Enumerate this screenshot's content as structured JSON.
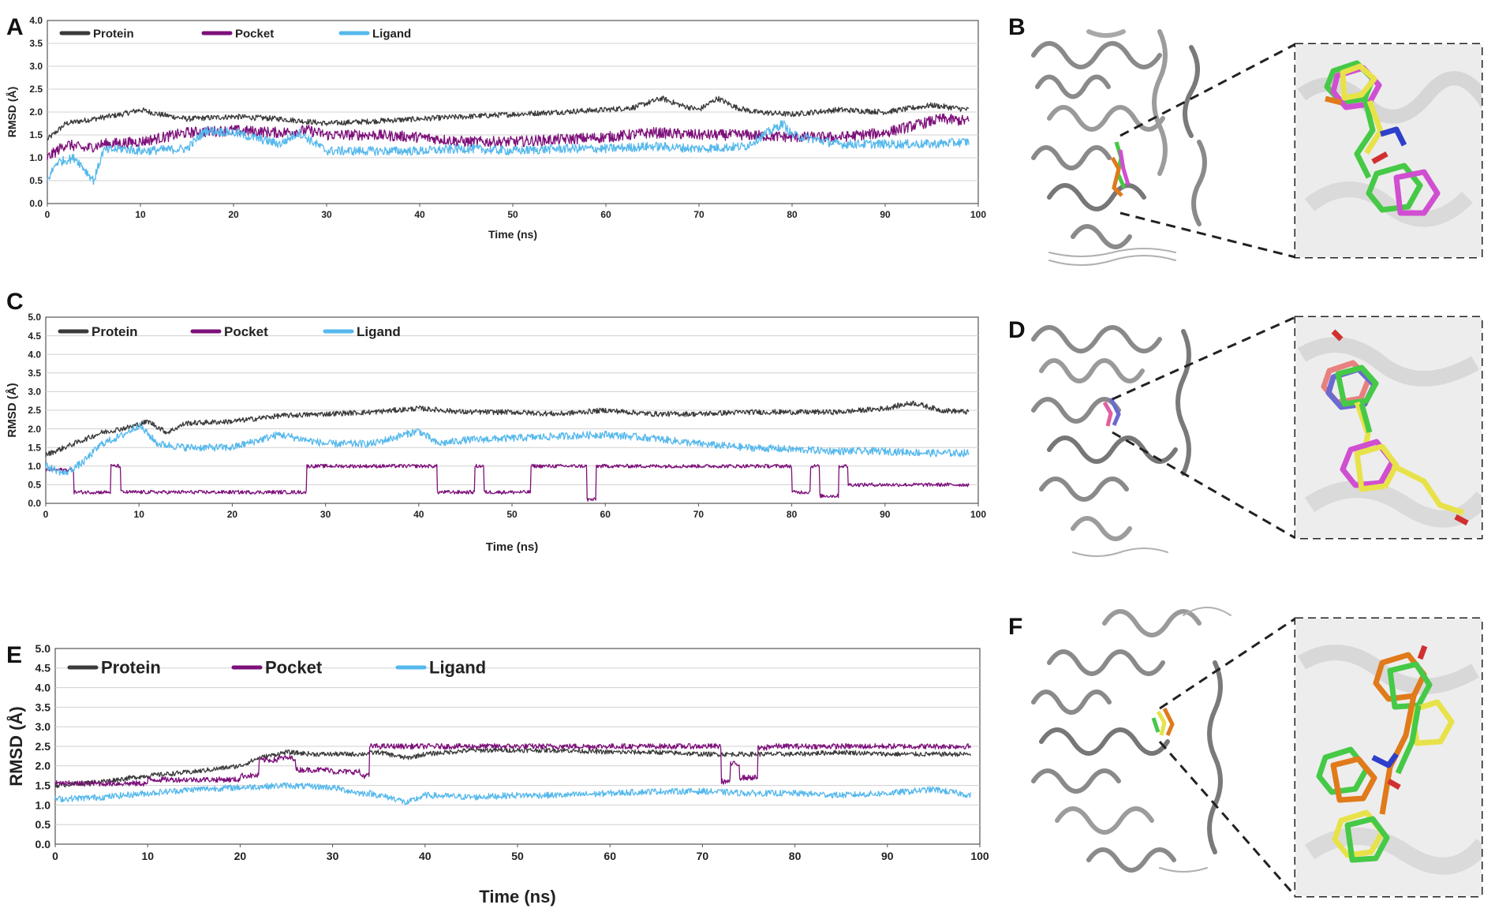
{
  "panels": {
    "A": "A",
    "B": "B",
    "C": "C",
    "D": "D",
    "E": "E",
    "F": "F"
  },
  "colors": {
    "protein": "#3a3a3a",
    "pocket": "#7d0f7a",
    "ligand": "#55b8ec",
    "grid": "#d0d0d0",
    "frame": "#555555"
  },
  "structure_icons": [
    "protein-cartoon-icon",
    "ligand-pose-icon"
  ],
  "chart_data": [
    {
      "type": "line",
      "panel": "A",
      "title": "",
      "xlabel": "Time (ns)",
      "ylabel": "RMSD (Å)",
      "xlim": [
        0,
        100
      ],
      "ylim": [
        0,
        4.0
      ],
      "xticks": [
        "0",
        "10",
        "20",
        "30",
        "40",
        "50",
        "60",
        "70",
        "80",
        "90",
        "100"
      ],
      "yticks": [
        "0.0",
        "0.5",
        "1.0",
        "1.5",
        "2.0",
        "2.5",
        "3.0",
        "3.5",
        "4.0"
      ],
      "grid": true,
      "legend": "top-left",
      "series": [
        {
          "name": "Protein",
          "key": "protein",
          "noise": 0.06,
          "x": [
            0,
            2,
            5,
            8,
            10,
            12,
            15,
            20,
            25,
            30,
            35,
            40,
            45,
            50,
            55,
            60,
            63,
            66,
            68,
            70,
            72,
            74,
            76,
            80,
            85,
            90,
            95,
            99
          ],
          "y": [
            1.4,
            1.75,
            1.85,
            1.95,
            2.05,
            1.95,
            1.85,
            1.9,
            1.85,
            1.75,
            1.8,
            1.85,
            1.9,
            1.95,
            2.0,
            2.05,
            2.1,
            2.3,
            2.15,
            2.05,
            2.3,
            2.1,
            2.0,
            1.95,
            2.05,
            2.0,
            2.15,
            2.05
          ]
        },
        {
          "name": "Pocket",
          "key": "pocket",
          "noise": 0.12,
          "x": [
            0,
            2,
            4,
            6,
            10,
            15,
            20,
            25,
            28,
            30,
            35,
            40,
            45,
            50,
            55,
            60,
            65,
            70,
            75,
            80,
            85,
            90,
            94,
            96,
            99
          ],
          "y": [
            1.0,
            1.3,
            1.2,
            1.3,
            1.35,
            1.55,
            1.6,
            1.55,
            1.6,
            1.5,
            1.5,
            1.45,
            1.35,
            1.35,
            1.4,
            1.45,
            1.55,
            1.5,
            1.5,
            1.45,
            1.45,
            1.55,
            1.75,
            1.85,
            1.8
          ]
        },
        {
          "name": "Ligand",
          "key": "ligand",
          "noise": 0.1,
          "x": [
            0,
            1,
            3,
            5,
            6,
            8,
            10,
            15,
            17,
            20,
            25,
            27,
            30,
            35,
            40,
            45,
            50,
            55,
            60,
            65,
            70,
            75,
            79,
            80,
            85,
            90,
            95,
            99
          ],
          "y": [
            0.5,
            0.9,
            1.0,
            0.5,
            1.15,
            1.2,
            1.15,
            1.2,
            1.6,
            1.55,
            1.3,
            1.55,
            1.15,
            1.15,
            1.15,
            1.2,
            1.15,
            1.2,
            1.2,
            1.25,
            1.2,
            1.25,
            1.75,
            1.5,
            1.3,
            1.3,
            1.3,
            1.35
          ]
        }
      ]
    },
    {
      "type": "line",
      "panel": "C",
      "title": "",
      "xlabel": "Time (ns)",
      "ylabel": "RMSD (Å)",
      "xlim": [
        0,
        100
      ],
      "ylim": [
        0,
        5.0
      ],
      "xticks": [
        "0",
        "10",
        "20",
        "30",
        "40",
        "50",
        "60",
        "70",
        "80",
        "90",
        "100"
      ],
      "yticks": [
        "0.0",
        "0.5",
        "1.0",
        "1.5",
        "2.0",
        "2.5",
        "3.0",
        "3.5",
        "4.0",
        "4.5",
        "5.0"
      ],
      "grid": true,
      "legend": "top-left",
      "series": [
        {
          "name": "Protein",
          "key": "protein",
          "noise": 0.07,
          "x": [
            0,
            3,
            6,
            9,
            11,
            13,
            15,
            20,
            25,
            30,
            35,
            40,
            45,
            50,
            55,
            60,
            65,
            70,
            75,
            80,
            85,
            90,
            93,
            96,
            99
          ],
          "y": [
            1.3,
            1.6,
            1.9,
            2.05,
            2.2,
            1.9,
            2.15,
            2.2,
            2.35,
            2.4,
            2.45,
            2.55,
            2.45,
            2.45,
            2.4,
            2.5,
            2.4,
            2.4,
            2.45,
            2.45,
            2.45,
            2.55,
            2.7,
            2.5,
            2.45
          ]
        },
        {
          "name": "Pocket",
          "key": "pocket",
          "noise": 0.05,
          "step": true,
          "x": [
            0,
            3,
            7,
            8,
            27,
            28,
            42,
            46,
            47,
            51,
            52,
            58,
            59,
            79,
            80,
            82,
            83,
            85,
            86,
            99
          ],
          "y": [
            0.9,
            0.3,
            1.0,
            0.3,
            0.3,
            1.0,
            0.3,
            1.0,
            0.3,
            0.3,
            1.0,
            0.1,
            1.0,
            1.0,
            0.3,
            1.0,
            0.2,
            1.0,
            0.5,
            1.0
          ]
        },
        {
          "name": "Ligand",
          "key": "ligand",
          "noise": 0.1,
          "x": [
            0,
            2,
            4,
            6,
            8,
            10,
            12,
            15,
            20,
            25,
            30,
            35,
            40,
            42,
            45,
            50,
            55,
            60,
            65,
            70,
            75,
            80,
            85,
            90,
            95,
            99
          ],
          "y": [
            1.0,
            0.8,
            1.1,
            1.6,
            1.8,
            2.1,
            1.6,
            1.5,
            1.5,
            1.85,
            1.6,
            1.6,
            1.95,
            1.6,
            1.7,
            1.75,
            1.8,
            1.85,
            1.75,
            1.6,
            1.5,
            1.45,
            1.4,
            1.4,
            1.35,
            1.35
          ]
        }
      ]
    },
    {
      "type": "line",
      "panel": "E",
      "title": "",
      "xlabel": "Time (ns)",
      "ylabel": "RMSD (Å)",
      "xlim": [
        0,
        100
      ],
      "ylim": [
        0,
        5.0
      ],
      "xticks": [
        "0",
        "10",
        "20",
        "30",
        "40",
        "50",
        "60",
        "70",
        "80",
        "90",
        "100"
      ],
      "yticks": [
        "0.0",
        "0.5",
        "1.0",
        "1.5",
        "2.0",
        "2.5",
        "3.0",
        "3.5",
        "4.0",
        "4.5",
        "5.0"
      ],
      "grid": true,
      "legend": "top-left",
      "series": [
        {
          "name": "Protein",
          "key": "protein",
          "noise": 0.06,
          "x": [
            0,
            5,
            10,
            15,
            20,
            22,
            25,
            28,
            30,
            33,
            35,
            38,
            40,
            45,
            50,
            55,
            60,
            65,
            70,
            75,
            80,
            85,
            90,
            95,
            99
          ],
          "y": [
            1.5,
            1.6,
            1.75,
            1.85,
            2.0,
            2.2,
            2.35,
            2.3,
            2.3,
            2.3,
            2.35,
            2.2,
            2.3,
            2.4,
            2.4,
            2.4,
            2.35,
            2.35,
            2.3,
            2.3,
            2.3,
            2.35,
            2.3,
            2.3,
            2.3
          ]
        },
        {
          "name": "Pocket",
          "key": "pocket",
          "noise": 0.07,
          "step": true,
          "x": [
            0,
            10,
            20,
            22,
            24,
            26,
            30,
            33,
            34,
            71,
            72,
            73,
            74,
            76,
            77,
            85,
            99
          ],
          "y": [
            1.55,
            1.65,
            1.75,
            2.15,
            2.2,
            1.9,
            1.85,
            1.75,
            2.5,
            2.5,
            1.6,
            2.05,
            1.7,
            2.45,
            2.5,
            2.5,
            2.5
          ]
        },
        {
          "name": "Ligand",
          "key": "ligand",
          "noise": 0.08,
          "x": [
            0,
            5,
            10,
            15,
            20,
            25,
            30,
            33,
            34,
            37,
            38,
            40,
            45,
            50,
            55,
            60,
            65,
            70,
            75,
            80,
            85,
            90,
            95,
            99
          ],
          "y": [
            1.15,
            1.2,
            1.3,
            1.4,
            1.45,
            1.5,
            1.45,
            1.3,
            1.3,
            1.15,
            1.05,
            1.25,
            1.2,
            1.25,
            1.25,
            1.3,
            1.35,
            1.35,
            1.3,
            1.3,
            1.25,
            1.3,
            1.4,
            1.25
          ]
        }
      ]
    }
  ]
}
